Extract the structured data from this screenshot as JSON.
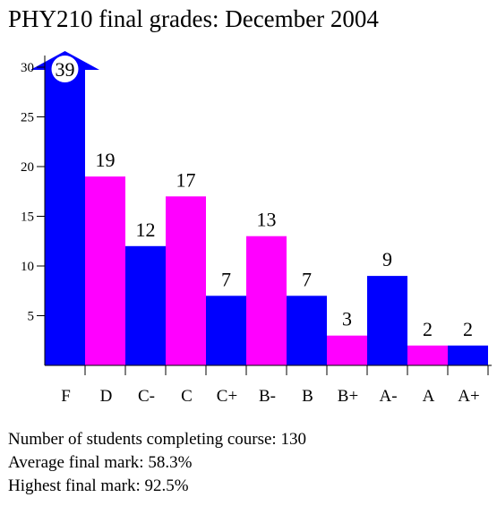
{
  "chart_data": {
    "type": "bar",
    "title": "PHY210 final grades: December 2004",
    "xlabel": "",
    "ylabel": "",
    "ylim": [
      0,
      30
    ],
    "yticks": [
      5,
      10,
      15,
      20,
      25,
      30
    ],
    "grid": false,
    "legend": "none",
    "categories": [
      "F",
      "D",
      "C-",
      "C",
      "C+",
      "B-",
      "B",
      "B+",
      "A-",
      "A",
      "A+"
    ],
    "values": [
      39,
      19,
      12,
      17,
      7,
      13,
      7,
      3,
      9,
      2,
      2
    ],
    "value_labels": [
      "39",
      "19",
      "12",
      "17",
      "7",
      "13",
      "7",
      "3",
      "9",
      "2",
      "2"
    ],
    "bar_colors": [
      "#0000ff",
      "#ff00ff",
      "#0000ff",
      "#ff00ff",
      "#0000ff",
      "#ff00ff",
      "#0000ff",
      "#ff00ff",
      "#0000ff",
      "#ff00ff",
      "#0000ff"
    ],
    "clipped_bar": {
      "category": "F",
      "value": 39,
      "marker": "up-arrow"
    }
  },
  "stats": [
    "Number of students completing course: 130",
    "Average final mark: 58.3%",
    "Highest final mark: 92.5%"
  ],
  "colors": {
    "blue": "#0000ff",
    "magenta": "#ff00ff",
    "axis": "#000000",
    "background": "#ffffff"
  }
}
